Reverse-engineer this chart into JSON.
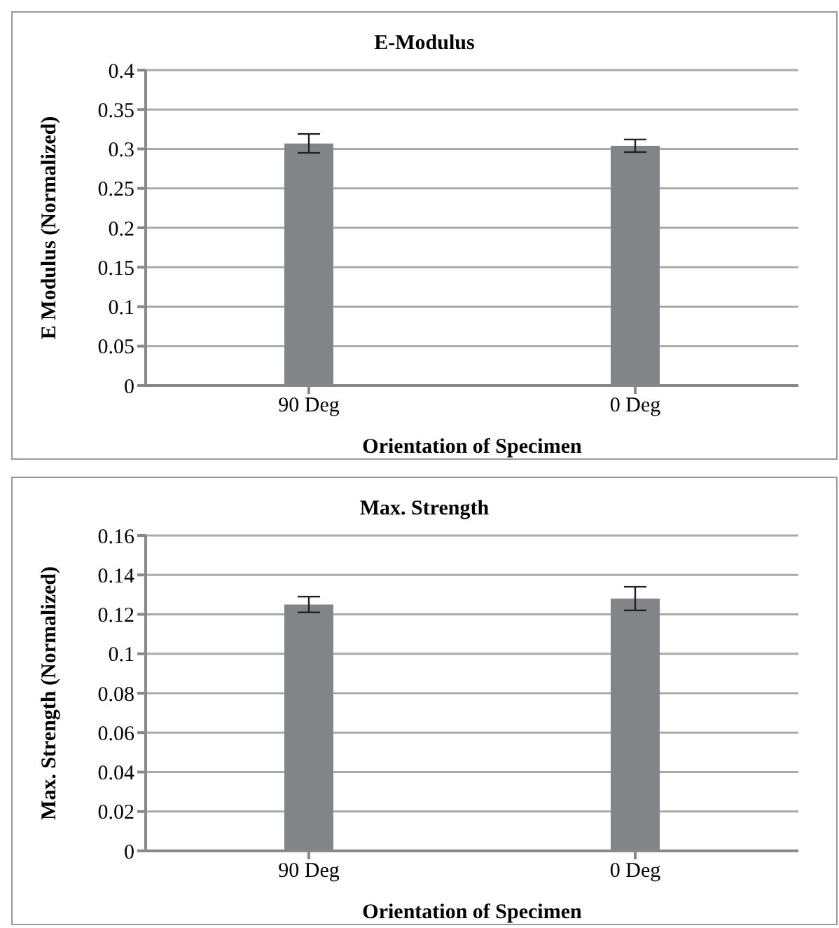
{
  "chart_data": [
    {
      "type": "bar",
      "title": "E-Modulus",
      "xlabel": "Orientation of Specimen",
      "ylabel": "E Modulus (Normalized)",
      "categories": [
        "90 Deg",
        "0 Deg"
      ],
      "values": [
        0.307,
        0.304
      ],
      "errors": [
        0.012,
        0.008
      ],
      "color": "#838488",
      "ylim": [
        0,
        0.4
      ],
      "yticks": [
        0,
        {
          "value": 0.05,
          "label": "0.05"
        },
        0.1,
        0.15,
        0.2,
        0.25,
        0.3,
        0.35,
        0.4
      ],
      "grid": "y",
      "legend": false
    },
    {
      "type": "bar",
      "title": "Max. Strength",
      "xlabel": "Orientation of Specimen",
      "ylabel": "Max. Strength (Normalized)",
      "categories": [
        "90 Deg",
        "0 Deg"
      ],
      "values": [
        0.125,
        0.128
      ],
      "errors": [
        0.004,
        0.006
      ],
      "color": "#838488",
      "ylim": [
        0,
        0.16
      ],
      "yticks": [
        0,
        0.02,
        0.04,
        0.06,
        0.08,
        0.1,
        0.12,
        0.14,
        0.16
      ],
      "grid": "y",
      "legend": false
    }
  ]
}
